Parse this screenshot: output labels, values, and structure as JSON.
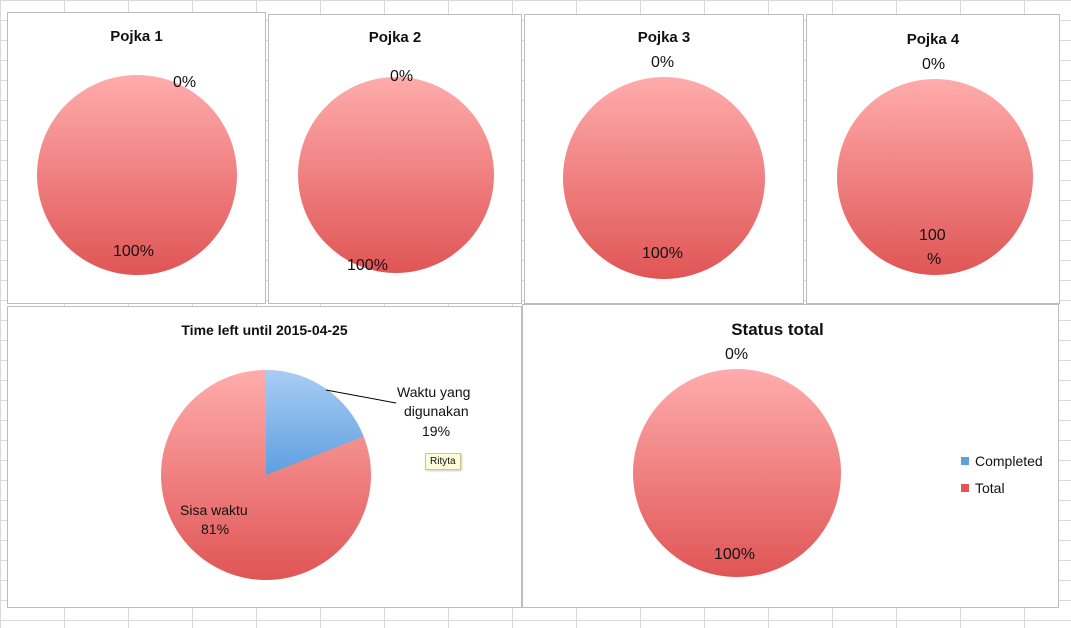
{
  "colors": {
    "total_top": "#ffacac",
    "total_bottom": "#e05555",
    "completed_top": "#a9cdf4",
    "completed_bottom": "#5e9fdf",
    "leader": "#000000"
  },
  "chart_data": [
    {
      "type": "pie",
      "title": "Pojka 1",
      "slices": [
        {
          "name": "Completed",
          "value": 0,
          "label": "0%"
        },
        {
          "name": "Total",
          "value": 100,
          "label": "100%"
        }
      ]
    },
    {
      "type": "pie",
      "title": "Pojka 2",
      "slices": [
        {
          "name": "Completed",
          "value": 0,
          "label": "0%"
        },
        {
          "name": "Total",
          "value": 100,
          "label": "100%"
        }
      ]
    },
    {
      "type": "pie",
      "title": "Pojka 3",
      "slices": [
        {
          "name": "Completed",
          "value": 0,
          "label": "0%"
        },
        {
          "name": "Total",
          "value": 100,
          "label": "100%"
        }
      ]
    },
    {
      "type": "pie",
      "title": "Pojka 4",
      "slices": [
        {
          "name": "Completed",
          "value": 0,
          "label": "0%"
        },
        {
          "name": "Total",
          "value": 100,
          "label_line1": "100",
          "label_line2": "%"
        }
      ]
    },
    {
      "type": "pie",
      "title": "Time left until 2015-04-25",
      "slices": [
        {
          "name": "Waktu yang digunakan",
          "value": 19,
          "name_line1": "Waktu yang",
          "name_line2": "digunakan",
          "label": "19%"
        },
        {
          "name": "Sisa waktu",
          "value": 81,
          "label": "81%"
        }
      ],
      "note": "Rityta"
    },
    {
      "type": "pie",
      "title": "Status total",
      "slices": [
        {
          "name": "Completed",
          "value": 0,
          "label": "0%"
        },
        {
          "name": "Total",
          "value": 100,
          "label": "100%"
        }
      ],
      "legend": {
        "placement": "right",
        "entries": [
          "Completed",
          "Total"
        ]
      }
    }
  ]
}
